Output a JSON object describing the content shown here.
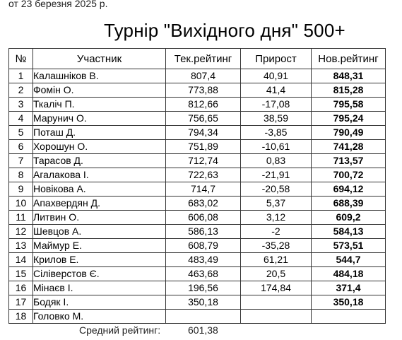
{
  "header": {
    "date": "от 23 березня 2025 р.",
    "title": "Турнір \"Вихідного дня\" 500+"
  },
  "table": {
    "columns": [
      "№",
      "Участник",
      "Тек.рейтинг",
      "Прирост",
      "Нов.рейтинг"
    ],
    "rows": [
      {
        "num": "1",
        "name": "Калашніков В.",
        "cur": "807,4",
        "gain": "40,91",
        "new": "848,31"
      },
      {
        "num": "2",
        "name": "Фомін О.",
        "cur": "773,88",
        "gain": "41,4",
        "new": "815,28"
      },
      {
        "num": "3",
        "name": "Ткаліч П.",
        "cur": "812,66",
        "gain": "-17,08",
        "new": "795,58"
      },
      {
        "num": "4",
        "name": "Марунич О.",
        "cur": "756,65",
        "gain": "38,59",
        "new": "795,24"
      },
      {
        "num": "5",
        "name": "Поташ Д.",
        "cur": "794,34",
        "gain": "-3,85",
        "new": "790,49"
      },
      {
        "num": "6",
        "name": "Хорошун О.",
        "cur": "751,89",
        "gain": "-10,61",
        "new": "741,28"
      },
      {
        "num": "7",
        "name": "Тарасов Д.",
        "cur": "712,74",
        "gain": "0,83",
        "new": "713,57"
      },
      {
        "num": "8",
        "name": "Агалакова І.",
        "cur": "722,63",
        "gain": "-21,91",
        "new": "700,72"
      },
      {
        "num": "9",
        "name": "Новікова А.",
        "cur": "714,7",
        "gain": "-20,58",
        "new": "694,12"
      },
      {
        "num": "10",
        "name": "Апахвердян Д.",
        "cur": "683,02",
        "gain": "5,37",
        "new": "688,39"
      },
      {
        "num": "11",
        "name": "Литвин О.",
        "cur": "606,08",
        "gain": "3,12",
        "new": "609,2"
      },
      {
        "num": "12",
        "name": "Шевцов А.",
        "cur": "586,13",
        "gain": "-2",
        "new": "584,13"
      },
      {
        "num": "13",
        "name": "Маймур Е.",
        "cur": "608,79",
        "gain": "-35,28",
        "new": "573,51"
      },
      {
        "num": "14",
        "name": "Крилов Е.",
        "cur": "483,49",
        "gain": "61,21",
        "new": "544,7"
      },
      {
        "num": "15",
        "name": "Сіліверстов Є.",
        "cur": "463,68",
        "gain": "20,5",
        "new": "484,18"
      },
      {
        "num": "16",
        "name": "Мінаєв І.",
        "cur": "196,56",
        "gain": "174,84",
        "new": "371,4"
      },
      {
        "num": "17",
        "name": "Бодяк І.",
        "cur": "350,18",
        "gain": "",
        "new": "350,18"
      },
      {
        "num": "18",
        "name": "Головко М.",
        "cur": "",
        "gain": "",
        "new": ""
      }
    ]
  },
  "footer": {
    "average_label": "Средний рейтинг:",
    "average_value": "601,38"
  }
}
